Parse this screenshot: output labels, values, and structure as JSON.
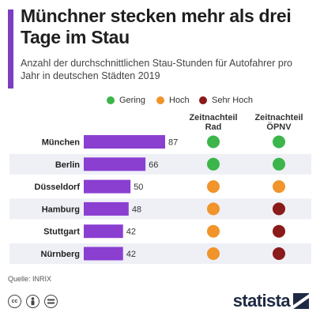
{
  "header": {
    "title": "Münchner stecken mehr als drei Tage im Stau",
    "subtitle": "Anzahl der durchschnittlichen Stau-Stunden für Autofahrer pro Jahr in deutschen Städten 2019"
  },
  "legend": [
    {
      "label": "Gering",
      "color": "#3cb54a"
    },
    {
      "label": "Hoch",
      "color": "#f0942b"
    },
    {
      "label": "Sehr Hoch",
      "color": "#8b1a1a"
    }
  ],
  "columns": {
    "rad": "Zeitnachteil Rad",
    "opnv": "Zeitnachteil ÖPNV"
  },
  "chart_data": {
    "type": "bar",
    "orientation": "horizontal",
    "categories": [
      "München",
      "Berlin",
      "Düsseldorf",
      "Hamburg",
      "Stuttgart",
      "Nürnberg"
    ],
    "values": [
      87,
      66,
      50,
      48,
      42,
      42
    ],
    "xlim": [
      0,
      87
    ],
    "bar_color": "#8a3fd1",
    "row_band_color": "#eef0f6",
    "zeitnachteil_rad": [
      "Gering",
      "Gering",
      "Hoch",
      "Hoch",
      "Hoch",
      "Hoch"
    ],
    "zeitnachteil_opnv": [
      "Gering",
      "Gering",
      "Hoch",
      "Sehr Hoch",
      "Sehr Hoch",
      "Sehr Hoch"
    ]
  },
  "footer": {
    "source": "Quelle: INRIX",
    "license_icons": [
      "cc-icon",
      "by-icon",
      "nd-icon"
    ],
    "brand": "statista"
  }
}
